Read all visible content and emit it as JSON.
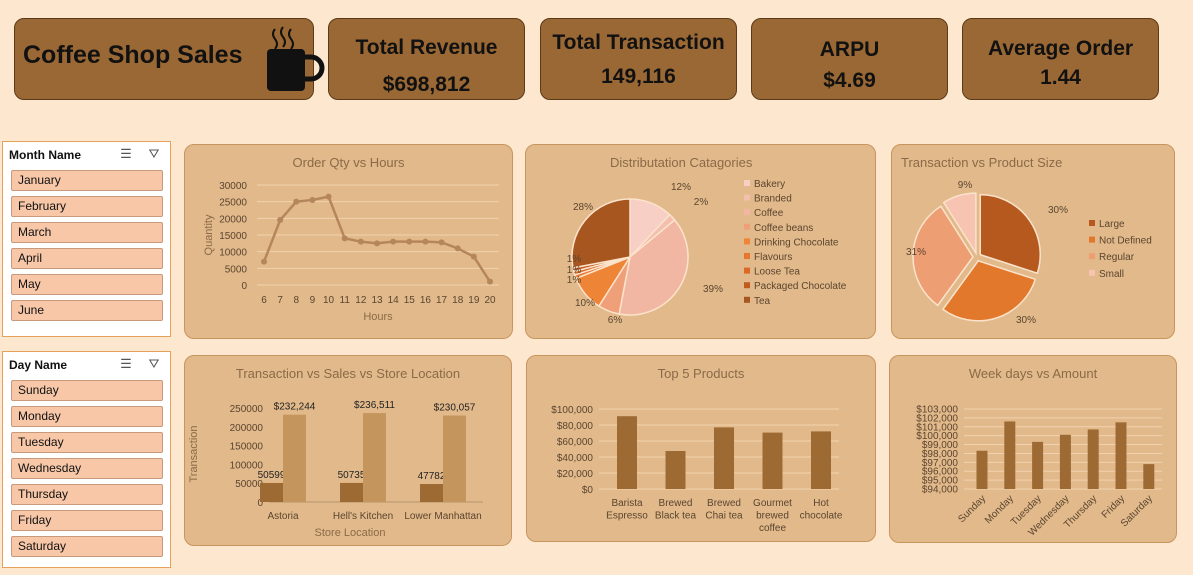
{
  "header": {
    "brand_title": "Coffee Shop Sales",
    "kpis": [
      {
        "label": "Total Revenue",
        "value": "$698,812"
      },
      {
        "label": "Total Transaction",
        "value": "149,116"
      },
      {
        "label": "ARPU",
        "value": "$4.69"
      },
      {
        "label": "Average Order",
        "value": "1.44"
      }
    ]
  },
  "slicers": {
    "month": {
      "title": "Month Name",
      "items": [
        "January",
        "February",
        "March",
        "April",
        "May",
        "June"
      ]
    },
    "day": {
      "title": "Day Name",
      "items": [
        "Sunday",
        "Monday",
        "Tuesday",
        "Wednesday",
        "Thursday",
        "Friday",
        "Saturday"
      ]
    }
  },
  "colors": {
    "background": "#fde7cf",
    "panel": "#e2b98a",
    "kpi": "#9a6834",
    "line": "#b5865a",
    "bar_dark": "#9e6a33",
    "bar_light": "#c5955e"
  },
  "chart_data": [
    {
      "type": "line",
      "title": "Order Qty vs Hours",
      "xlabel": "Hours",
      "ylabel": "Quantity",
      "x": [
        6,
        7,
        8,
        9,
        10,
        11,
        12,
        13,
        14,
        15,
        16,
        17,
        18,
        19,
        20
      ],
      "values": [
        7000,
        19500,
        25000,
        25500,
        26500,
        14000,
        13000,
        12500,
        13000,
        13000,
        13000,
        12800,
        11000,
        8500,
        1000
      ],
      "yticks": [
        "0",
        "5000",
        "10000",
        "15000",
        "20000",
        "25000",
        "30000"
      ],
      "ylim": [
        0,
        30000
      ],
      "grid": true
    },
    {
      "type": "pie",
      "title": "Distributation Catagories",
      "legend": [
        "Bakery",
        "Branded",
        "Coffee",
        "Coffee beans",
        "Drinking Chocolate",
        "Flavours",
        "Loose Tea",
        "Packaged Chocolate",
        "Tea"
      ],
      "values": [
        12,
        2,
        39,
        6,
        10,
        1,
        1,
        1,
        28
      ],
      "labels": [
        "12%",
        "2%",
        "39%",
        "6%",
        "10%",
        "1%",
        "1%",
        "1%",
        "28%"
      ],
      "colors": [
        "#f7cfc4",
        "#f3bfae",
        "#f2b7a2",
        "#f0a079",
        "#ee8436",
        "#e8762f",
        "#dc6a27",
        "#c05a1f",
        "#a8561f"
      ],
      "legend_position": "right"
    },
    {
      "type": "pie",
      "title": "Transaction vs Product Size",
      "legend": [
        "Large",
        "Not Defined",
        "Regular",
        "Small"
      ],
      "values": [
        30,
        30,
        31,
        9
      ],
      "labels": [
        "30%",
        "30%",
        "31%",
        "9%"
      ],
      "colors": [
        "#b5591f",
        "#e2782c",
        "#ee9e73",
        "#f6c4b1"
      ],
      "legend_position": "right"
    },
    {
      "type": "bar",
      "title": "Transaction vs Sales vs Store Location",
      "xlabel": "Store Location",
      "ylabel": "Transaction",
      "categories": [
        "Astoria",
        "Hell's Kitchen",
        "Lower Manhattan"
      ],
      "series": [
        {
          "values": [
            50599,
            50735,
            47782
          ],
          "labels": [
            "50599",
            "50735",
            "47782"
          ]
        },
        {
          "values": [
            232244,
            236511,
            230057
          ],
          "labels": [
            "$232,244",
            "$236,511",
            "$230,057"
          ]
        }
      ],
      "yticks": [
        "0",
        "50000",
        "100000",
        "150000",
        "200000",
        "250000"
      ],
      "ylim": [
        0,
        250000
      ]
    },
    {
      "type": "bar",
      "title": "Top 5 Products",
      "categories": [
        [
          "Barista",
          "Espresso"
        ],
        [
          "Brewed",
          "Black tea"
        ],
        [
          "Brewed",
          "Chai tea"
        ],
        [
          "Gourmet",
          "brewed",
          "coffee"
        ],
        [
          "Hot",
          "chocolate"
        ]
      ],
      "values": [
        91000,
        47500,
        77000,
        70500,
        72000
      ],
      "yticks": [
        "$0",
        "$20,000",
        "$40,000",
        "$60,000",
        "$80,000",
        "$100,000"
      ],
      "ylim": [
        0,
        100000
      ],
      "grid": true
    },
    {
      "type": "bar",
      "title": "Week days vs Amount",
      "categories": [
        "Sunday",
        "Monday",
        "Tuesday",
        "Wednesday",
        "Thursday",
        "Friday",
        "Saturday"
      ],
      "values": [
        98300,
        101600,
        99300,
        100100,
        100700,
        101500,
        96800
      ],
      "yticks": [
        "$94,000",
        "$95,000",
        "$96,000",
        "$97,000",
        "$98,000",
        "$99,000",
        "$100,000",
        "$101,000",
        "$102,000",
        "$103,000"
      ],
      "ylim": [
        94000,
        103000
      ],
      "grid": true
    }
  ]
}
